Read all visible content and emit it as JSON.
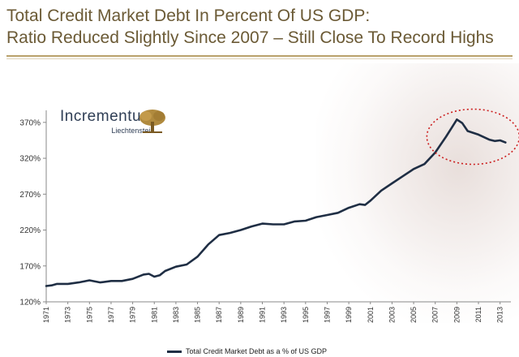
{
  "title_line1": "Total Credit Market Debt In Percent Of US GDP:",
  "title_line2": "Ratio Reduced Slightly Since 2007 – Still Close To Record Highs",
  "logo": {
    "name": "Incrementum",
    "sub": "Liechtenstein"
  },
  "colors": {
    "title": "#6b5a35",
    "line": "#1f2e44",
    "highlight_circle": "#cc1f1f",
    "axis": "#888888"
  },
  "chart_data": {
    "type": "line",
    "title": "",
    "xlabel": "",
    "ylabel": "",
    "ylim": [
      120,
      380
    ],
    "xlim": [
      1971,
      2014
    ],
    "y_ticks": [
      120,
      170,
      220,
      270,
      320,
      370
    ],
    "y_tick_labels": [
      "120%",
      "170%",
      "220%",
      "270%",
      "320%",
      "370%"
    ],
    "x_tick_labels": [
      "1971",
      "1973",
      "1975",
      "1977",
      "1979",
      "1981",
      "1983",
      "1985",
      "1987",
      "1989",
      "1991",
      "1993",
      "1995",
      "1997",
      "1999",
      "2001",
      "2003",
      "2005",
      "2007",
      "2009",
      "2011",
      "2013"
    ],
    "legend_position": "bottom-center",
    "grid": false,
    "annotation": "dotted red ellipse around 2008–2013 peak",
    "series": [
      {
        "name": "Total Credit Market Debt as a % of US GDP",
        "x": [
          1971,
          1971.5,
          1972,
          1973,
          1974,
          1975,
          1976,
          1977,
          1978,
          1979,
          1980,
          1980.5,
          1981,
          1981.5,
          1982,
          1983,
          1984,
          1985,
          1986,
          1987,
          1988,
          1989,
          1990,
          1991,
          1992,
          1993,
          1994,
          1995,
          1996,
          1997,
          1998,
          1999,
          2000,
          2000.5,
          2001,
          2002,
          2003,
          2004,
          2005,
          2006,
          2007,
          2008,
          2008.5,
          2009,
          2009.5,
          2010,
          2011,
          2012,
          2012.5,
          2013,
          2013.5
        ],
        "y": [
          142,
          143,
          145,
          145,
          147,
          150,
          147,
          149,
          149,
          152,
          158,
          159,
          155,
          157,
          163,
          169,
          172,
          183,
          200,
          213,
          216,
          220,
          225,
          229,
          228,
          228,
          232,
          233,
          238,
          241,
          244,
          251,
          256,
          255,
          261,
          275,
          285,
          295,
          305,
          312,
          328,
          350,
          362,
          374,
          369,
          358,
          353,
          346,
          344,
          345,
          342
        ]
      }
    ]
  },
  "legend": {
    "label": "Total Credit Market Debt as a % of US GDP"
  }
}
